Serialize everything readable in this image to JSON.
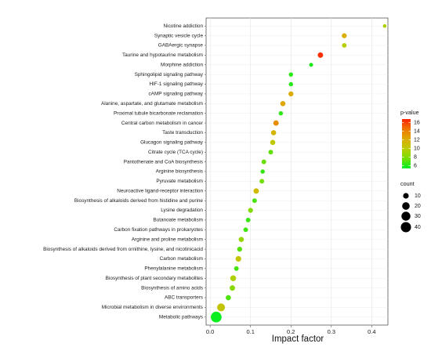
{
  "chart_data": {
    "type": "scatter",
    "title": "",
    "xlabel": "Impact factor",
    "ylabel": "",
    "xlim": [
      -0.01,
      0.44
    ],
    "x_ticks": [
      "0.0",
      "0.1",
      "0.2",
      "0.3",
      "0.4"
    ],
    "x_tick_values": [
      0.0,
      0.1,
      0.2,
      0.3,
      0.4
    ],
    "grid": true,
    "legend_position": "right",
    "color_legend": {
      "title": "p-value",
      "min": 5.4,
      "max": 16.8,
      "ticks": [
        6,
        8,
        10,
        12,
        14,
        16
      ],
      "colors": [
        "#00ee22",
        "#77dd00",
        "#bbcc00",
        "#ddaa00",
        "#ee7700",
        "#ff2200"
      ]
    },
    "size_legend": {
      "title": "count",
      "values": [
        10,
        20,
        30,
        40
      ]
    },
    "points": [
      {
        "pathway": "Nicotine addiction",
        "impact": 0.432,
        "pvalue": 9.5,
        "count": 3
      },
      {
        "pathway": "Synaptic vesicle cycle",
        "impact": 0.332,
        "pvalue": 12.0,
        "count": 7
      },
      {
        "pathway": "GABAergic synapse",
        "impact": 0.332,
        "pvalue": 9.8,
        "count": 6
      },
      {
        "pathway": "Taurine and hypotaurine metabolism",
        "impact": 0.273,
        "pvalue": 16.5,
        "count": 9
      },
      {
        "pathway": "Morphine addiction",
        "impact": 0.25,
        "pvalue": 6.0,
        "count": 4
      },
      {
        "pathway": "Sphingolipid signaling pathway",
        "impact": 0.2,
        "pvalue": 6.2,
        "count": 5
      },
      {
        "pathway": "HIF-1 signaling pathway",
        "impact": 0.2,
        "pvalue": 6.1,
        "count": 5
      },
      {
        "pathway": "cAMP signaling pathway",
        "impact": 0.2,
        "pvalue": 12.2,
        "count": 7
      },
      {
        "pathway": "Alanine, aspartate, and glutamate metabolism",
        "impact": 0.18,
        "pvalue": 12.4,
        "count": 8
      },
      {
        "pathway": "Proximal tubule bicarbonate reclamation",
        "impact": 0.175,
        "pvalue": 6.3,
        "count": 5
      },
      {
        "pathway": "Central carbon metabolism in cancer",
        "impact": 0.163,
        "pvalue": 13.5,
        "count": 9
      },
      {
        "pathway": "Taste transduction",
        "impact": 0.157,
        "pvalue": 11.6,
        "count": 8
      },
      {
        "pathway": "Glucagon signaling pathway",
        "impact": 0.155,
        "pvalue": 10.2,
        "count": 8
      },
      {
        "pathway": "Citrate cycle (TCA cycle)",
        "impact": 0.15,
        "pvalue": 7.2,
        "count": 6
      },
      {
        "pathway": "Pantothenate and CoA biosynthesis",
        "impact": 0.133,
        "pvalue": 7.4,
        "count": 6
      },
      {
        "pathway": "Arginine biosynthesis",
        "impact": 0.13,
        "pvalue": 6.4,
        "count": 5
      },
      {
        "pathway": "Pyruvate metabolism",
        "impact": 0.128,
        "pvalue": 7.6,
        "count": 6
      },
      {
        "pathway": "Neuroactive ligand-receptor interaction",
        "impact": 0.114,
        "pvalue": 11.2,
        "count": 9
      },
      {
        "pathway": "Biosynthesis of alkaloids derived from histidine and purine",
        "impact": 0.11,
        "pvalue": 6.8,
        "count": 6
      },
      {
        "pathway": "Lysine degradation",
        "impact": 0.1,
        "pvalue": 8.0,
        "count": 7
      },
      {
        "pathway": "Butanoate metabolism",
        "impact": 0.094,
        "pvalue": 6.5,
        "count": 6
      },
      {
        "pathway": "Carbon fixation pathways in prokaryotes",
        "impact": 0.088,
        "pvalue": 6.6,
        "count": 6
      },
      {
        "pathway": "Arginine and proline metabolism",
        "impact": 0.077,
        "pvalue": 8.6,
        "count": 8
      },
      {
        "pathway": "Biosynthesis of alkaloids derived from ornithine, lysine, and nicotinicacid",
        "impact": 0.073,
        "pvalue": 7.0,
        "count": 7
      },
      {
        "pathway": "Carbon metabolism",
        "impact": 0.07,
        "pvalue": 10.4,
        "count": 10
      },
      {
        "pathway": "Phenylalanine metabolism",
        "impact": 0.065,
        "pvalue": 6.7,
        "count": 6
      },
      {
        "pathway": "Biosynthesis of plant secondary metabolites",
        "impact": 0.057,
        "pvalue": 9.6,
        "count": 11
      },
      {
        "pathway": "Biosynthesis of amino acids",
        "impact": 0.055,
        "pvalue": 8.2,
        "count": 9
      },
      {
        "pathway": "ABC transporters",
        "impact": 0.045,
        "pvalue": 6.9,
        "count": 8
      },
      {
        "pathway": "Microbial metabolism in diverse environments",
        "impact": 0.027,
        "pvalue": 10.5,
        "count": 22
      },
      {
        "pathway": "Metabolic pathways",
        "impact": 0.015,
        "pvalue": 5.6,
        "count": 45
      }
    ]
  }
}
